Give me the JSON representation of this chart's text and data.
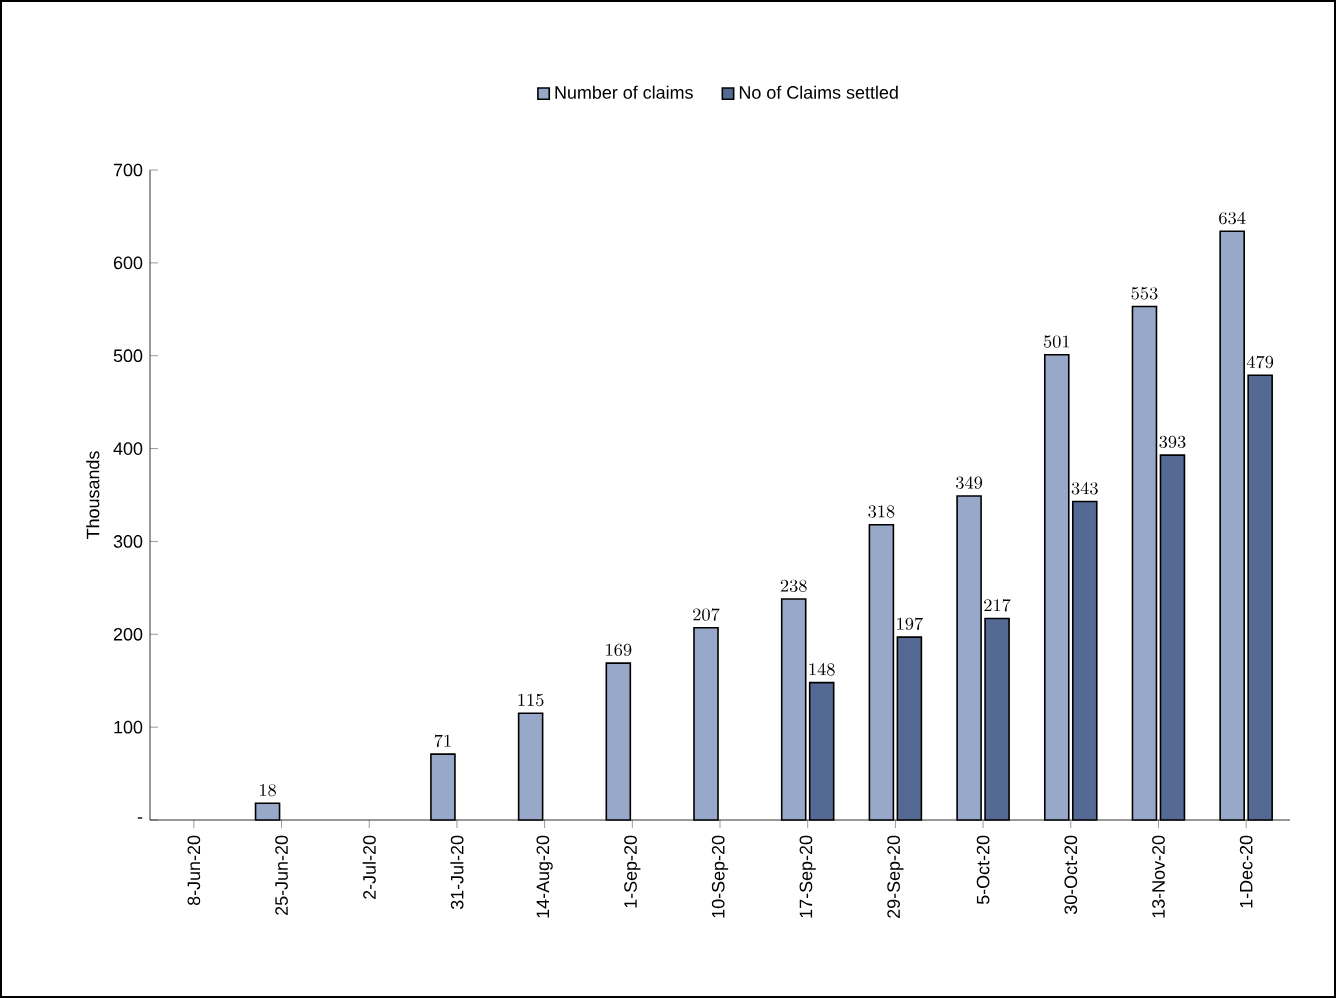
{
  "chart_data": {
    "type": "bar",
    "ylabel": "Thousands",
    "categories": [
      "8-Jun-20",
      "25-Jun-20",
      "2-Jul-20",
      "31-Jul-20",
      "14-Aug-20",
      "1-Sep-20",
      "10-Sep-20",
      "17-Sep-20",
      "29-Sep-20",
      "5-Oct-20",
      "30-Oct-20",
      "13-Nov-20",
      "1-Dec-20"
    ],
    "series": [
      {
        "name": "Number of claims",
        "color": "#98a8c8",
        "values": [
          null,
          18,
          null,
          71,
          115,
          169,
          207,
          238,
          318,
          349,
          501,
          553,
          634
        ]
      },
      {
        "name": "No of Claims settled",
        "color": "#546a94",
        "values": [
          null,
          null,
          null,
          null,
          null,
          null,
          null,
          148,
          197,
          217,
          343,
          393,
          479
        ]
      }
    ],
    "ylim": [
      0,
      700
    ],
    "yticks": [
      {
        "value": 0,
        "label": "-"
      },
      100,
      200,
      300,
      400,
      500,
      600,
      700
    ],
    "data_labels": true,
    "legend": "top",
    "grid": false
  }
}
